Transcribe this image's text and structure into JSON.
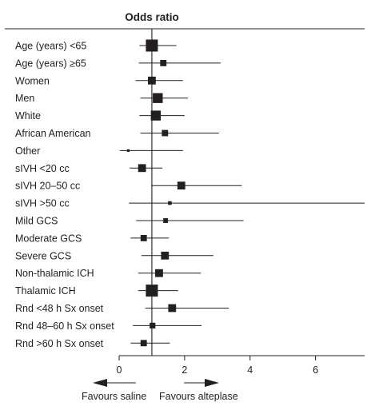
{
  "chart_data": {
    "type": "forest",
    "title": "Odds ratio",
    "xlim": [
      0,
      7.5
    ],
    "xticks": [
      0,
      2,
      4,
      6
    ],
    "reference_line": 1,
    "favours": {
      "left": "Favours saline",
      "right": "Favours alteplase"
    },
    "subgroups": [
      {
        "label": "Age (years) <65",
        "or": 1.0,
        "lo": 0.62,
        "hi": 1.75,
        "weight": 1.0
      },
      {
        "label": "Age (years) ≥65",
        "or": 1.35,
        "lo": 0.6,
        "hi": 3.1,
        "weight": 0.45
      },
      {
        "label": "Women",
        "or": 1.0,
        "lo": 0.5,
        "hi": 1.95,
        "weight": 0.6
      },
      {
        "label": "Men",
        "or": 1.18,
        "lo": 0.65,
        "hi": 2.1,
        "weight": 0.8
      },
      {
        "label": "White",
        "or": 1.12,
        "lo": 0.62,
        "hi": 2.0,
        "weight": 0.8
      },
      {
        "label": "African American",
        "or": 1.4,
        "lo": 0.65,
        "hi": 3.05,
        "weight": 0.45
      },
      {
        "label": "Other",
        "or": 0.28,
        "lo": 0.02,
        "hi": 1.95,
        "weight": 0.1
      },
      {
        "label": "sIVH <20 cc",
        "or": 0.7,
        "lo": 0.32,
        "hi": 1.32,
        "weight": 0.6
      },
      {
        "label": "sIVH 20–50 cc",
        "or": 1.9,
        "lo": 0.98,
        "hi": 3.75,
        "weight": 0.6
      },
      {
        "label": "sIVH >50 cc",
        "or": 1.55,
        "lo": 0.3,
        "hi": 7.5,
        "weight": 0.2
      },
      {
        "label": "Mild GCS",
        "or": 1.42,
        "lo": 0.52,
        "hi": 3.8,
        "weight": 0.3
      },
      {
        "label": "Moderate GCS",
        "or": 0.75,
        "lo": 0.35,
        "hi": 1.52,
        "weight": 0.45
      },
      {
        "label": "Severe GCS",
        "or": 1.4,
        "lo": 0.68,
        "hi": 2.88,
        "weight": 0.6
      },
      {
        "label": "Non-thalamic ICH",
        "or": 1.22,
        "lo": 0.58,
        "hi": 2.5,
        "weight": 0.6
      },
      {
        "label": "Thalamic ICH",
        "or": 1.0,
        "lo": 0.58,
        "hi": 1.8,
        "weight": 1.0
      },
      {
        "label": "Rnd <48 h Sx onset",
        "or": 1.62,
        "lo": 0.8,
        "hi": 3.35,
        "weight": 0.6
      },
      {
        "label": "Rnd 48–60 h Sx onset",
        "or": 1.02,
        "lo": 0.42,
        "hi": 2.52,
        "weight": 0.4
      },
      {
        "label": "Rnd >60 h Sx onset",
        "or": 0.75,
        "lo": 0.35,
        "hi": 1.55,
        "weight": 0.45
      }
    ]
  }
}
